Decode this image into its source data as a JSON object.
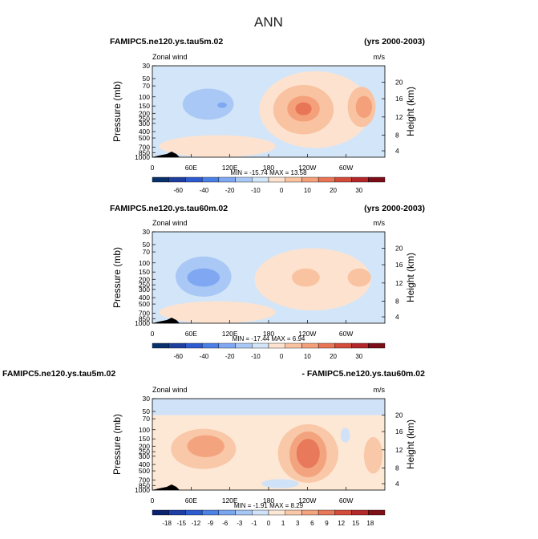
{
  "main_title": "ANN",
  "palettes": {
    "full": [
      "#08306b",
      "#1f3f9e",
      "#2e5bd0",
      "#4a7fe6",
      "#7fa7f2",
      "#aac8f5",
      "#d3e5f8",
      "#fde3cf",
      "#f9c2a0",
      "#f4a07a",
      "#e87556",
      "#d24b3b",
      "#b3272a",
      "#7a0d17"
    ],
    "diff": [
      "#0a2270",
      "#1d3ea6",
      "#2c5cd0",
      "#4d83e6",
      "#7aa6f0",
      "#a6c6f4",
      "#cfe2f8",
      "#fde8d6",
      "#f9c8a8",
      "#f3a47f",
      "#e8795a",
      "#d44d3c",
      "#b42a2a",
      "#7f1017"
    ]
  },
  "chart_data": [
    {
      "type": "heatmap",
      "panel_id": "p1",
      "case": "FAMIPC5.ne120.ys.tau5m.02",
      "years": "(yrs 2000-2003)",
      "subtitle": "Zonal wind",
      "units": "m/s",
      "ylabel": "Pressure (mb)",
      "ylabel_right": "Height (km)",
      "pressure_ticks": [
        "30",
        "50",
        "70",
        "100",
        "150",
        "200",
        "250",
        "300",
        "400",
        "500",
        "700",
        "850",
        "1000"
      ],
      "height_ticks": [
        "20",
        "16",
        "12",
        "8",
        "4"
      ],
      "lon_ticks": [
        "0",
        "60E",
        "120E",
        "180",
        "120W",
        "60W"
      ],
      "stats": "MIN = -15.74   MAX = 13.58",
      "colorbar_labels": [
        "-60",
        "-40",
        "-20",
        "-10",
        "0",
        "10",
        "20",
        "30"
      ],
      "min": -15.74,
      "max": 13.58
    },
    {
      "type": "heatmap",
      "panel_id": "p2",
      "case": "FAMIPC5.ne120.ys.tau60m.02",
      "years": "(yrs 2000-2003)",
      "subtitle": "Zonal wind",
      "units": "m/s",
      "ylabel": "Pressure (mb)",
      "ylabel_right": "Height (km)",
      "pressure_ticks": [
        "30",
        "50",
        "70",
        "100",
        "150",
        "200",
        "250",
        "300",
        "400",
        "500",
        "700",
        "850",
        "1000"
      ],
      "height_ticks": [
        "20",
        "16",
        "12",
        "8",
        "4"
      ],
      "lon_ticks": [
        "0",
        "60E",
        "120E",
        "180",
        "120W",
        "60W"
      ],
      "stats": "MIN = -17.44   MAX = 6.94",
      "colorbar_labels": [
        "-60",
        "-40",
        "-20",
        "-10",
        "0",
        "10",
        "20",
        "30"
      ],
      "min": -17.44,
      "max": 6.94
    },
    {
      "type": "heatmap",
      "panel_id": "p3",
      "case": "FAMIPC5.ne120.ys.tau5m.02",
      "years": "- FAMIPC5.ne120.ys.tau60m.02",
      "subtitle": "Zonal wind",
      "units": "m/s",
      "ylabel": "Pressure (mb)",
      "ylabel_right": "Height (km)",
      "pressure_ticks": [
        "30",
        "50",
        "70",
        "100",
        "150",
        "200",
        "250",
        "300",
        "400",
        "500",
        "700",
        "850",
        "1000"
      ],
      "height_ticks": [
        "20",
        "16",
        "12",
        "8",
        "4"
      ],
      "lon_ticks": [
        "0",
        "60E",
        "120E",
        "180",
        "120W",
        "60W"
      ],
      "stats": "MIN = -1.91   MAX = 8.29",
      "colorbar_labels": [
        "-18",
        "-15",
        "-12",
        "-9",
        "-6",
        "-3",
        "-1",
        "0",
        "1",
        "3",
        "6",
        "9",
        "12",
        "15",
        "18"
      ],
      "min": -1.91,
      "max": 8.29
    }
  ]
}
